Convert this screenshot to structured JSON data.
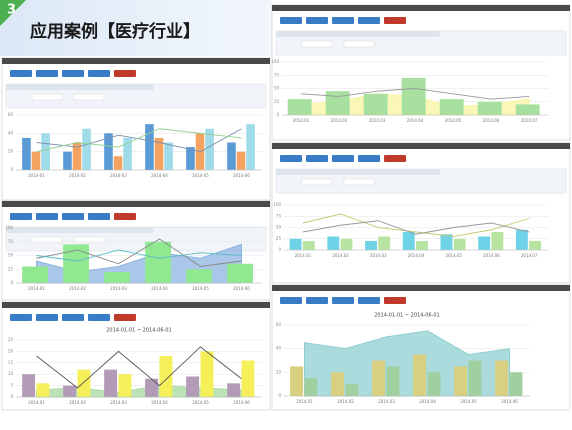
{
  "header": {
    "number": "3",
    "title": "应用案例【医疗行业】"
  },
  "panels": [
    {
      "chart": {
        "type": "combo",
        "categories": [
          "2014-01",
          "2014-02",
          "2014-03",
          "2014-04",
          "2014-05",
          "2014-06"
        ],
        "ylim": [
          0,
          60
        ],
        "yticks": [
          0,
          20,
          40,
          60
        ],
        "series": [
          {
            "type": "bar",
            "color": "#5b9bd5",
            "values": [
              35,
              20,
              40,
              50,
              25,
              30
            ]
          },
          {
            "type": "bar",
            "color": "#f4a460",
            "values": [
              20,
              30,
              15,
              35,
              40,
              20
            ]
          },
          {
            "type": "bar",
            "color": "#9fdbe8",
            "values": [
              40,
              45,
              35,
              30,
              45,
              50
            ]
          },
          {
            "type": "line",
            "color": "#7a8fb0",
            "values": [
              30,
              25,
              38,
              30,
              20,
              45
            ]
          },
          {
            "type": "line",
            "color": "#8fd08f",
            "values": [
              20,
              30,
              25,
              45,
              40,
              35
            ]
          }
        ]
      }
    },
    {
      "chart": {
        "type": "combo",
        "categories": [
          "2014-01",
          "2014-02",
          "2014-03",
          "2014-04",
          "2014-05",
          "2014-06"
        ],
        "ylim": [
          0,
          100
        ],
        "yticks": [
          0,
          25,
          50,
          75,
          100
        ],
        "series": [
          {
            "type": "area",
            "color": "#8db4e2",
            "values": [
              40,
              20,
              30,
              55,
              45,
              70
            ]
          },
          {
            "type": "bar",
            "color": "#90e890",
            "values": [
              30,
              70,
              20,
              75,
              25,
              35
            ]
          },
          {
            "type": "line",
            "color": "#888888",
            "values": [
              45,
              60,
              35,
              80,
              30,
              40
            ]
          },
          {
            "type": "line",
            "color": "#5bbcc8",
            "values": [
              50,
              40,
              60,
              45,
              55,
              50
            ]
          }
        ]
      }
    },
    {
      "chart": {
        "type": "combo",
        "subtitle": "2014-01-01 ~ 2014-06-01",
        "categories": [
          "2014.01",
          "2014.02",
          "2014.03",
          "2014.04",
          "2014.05",
          "2014.06"
        ],
        "ylim": [
          0,
          25
        ],
        "yticks": [
          0,
          5,
          10,
          15,
          20,
          25
        ],
        "series": [
          {
            "type": "area",
            "color": "#a8d8a0",
            "values": [
              3,
              4,
              2,
              5,
              4,
              3
            ]
          },
          {
            "type": "bar",
            "color": "#b39bb8",
            "values": [
              10,
              5,
              12,
              8,
              9,
              6
            ]
          },
          {
            "type": "bar",
            "color": "#f5f05a",
            "values": [
              6,
              12,
              10,
              18,
              20,
              16
            ]
          },
          {
            "type": "line",
            "color": "#555555",
            "values": [
              18,
              4,
              20,
              5,
              22,
              8
            ]
          }
        ]
      }
    },
    {
      "chart": {
        "type": "combo",
        "categories": [
          "2014.01",
          "2014.02",
          "2014.03",
          "2014.04",
          "2014.05",
          "2014.06",
          "2014.07"
        ],
        "ylim": [
          0,
          100
        ],
        "yticks": [
          0,
          25,
          50,
          75,
          100
        ],
        "series": [
          {
            "type": "area",
            "color": "#f8f4a0",
            "values": [
              20,
              25,
              40,
              35,
              15,
              20,
              30
            ]
          },
          {
            "type": "bar",
            "color": "#a8e0a0",
            "values": [
              30,
              45,
              40,
              70,
              30,
              25,
              20
            ]
          },
          {
            "type": "line",
            "color": "#999999",
            "values": [
              40,
              35,
              45,
              50,
              40,
              30,
              35
            ]
          }
        ]
      }
    },
    {
      "chart": {
        "type": "combo",
        "categories": [
          "2014.01",
          "2014.02",
          "2014.03",
          "2014.04",
          "2014.05",
          "2014.06",
          "2014.07"
        ],
        "ylim": [
          0,
          100
        ],
        "yticks": [
          0,
          25,
          50,
          75,
          100
        ],
        "series": [
          {
            "type": "bar",
            "color": "#6fd3e8",
            "values": [
              25,
              30,
              20,
              40,
              35,
              30,
              45
            ]
          },
          {
            "type": "bar",
            "color": "#b7e4a0",
            "values": [
              20,
              25,
              30,
              20,
              25,
              40,
              20
            ]
          },
          {
            "type": "line",
            "color": "#c8c870",
            "values": [
              60,
              80,
              50,
              40,
              30,
              45,
              70
            ]
          },
          {
            "type": "line",
            "color": "#999999",
            "values": [
              40,
              55,
              65,
              35,
              50,
              60,
              40
            ]
          }
        ]
      }
    },
    {
      "chart": {
        "type": "combo",
        "subtitle": "2014-01-01 ~ 2014-06-01",
        "categories": [
          "2014.01",
          "2014.02",
          "2014.03",
          "2014.04",
          "2014.05",
          "2014.06"
        ],
        "ylim": [
          0,
          60
        ],
        "yticks": [
          0,
          20,
          40,
          60
        ],
        "series": [
          {
            "type": "area",
            "color": "#8fcfd0",
            "values": [
              45,
              40,
              50,
              55,
              35,
              40
            ]
          },
          {
            "type": "bar",
            "color": "#d8d080",
            "values": [
              25,
              20,
              30,
              35,
              25,
              30
            ]
          },
          {
            "type": "bar",
            "color": "#a0d0a0",
            "values": [
              15,
              10,
              25,
              20,
              30,
              20
            ]
          }
        ]
      }
    }
  ]
}
